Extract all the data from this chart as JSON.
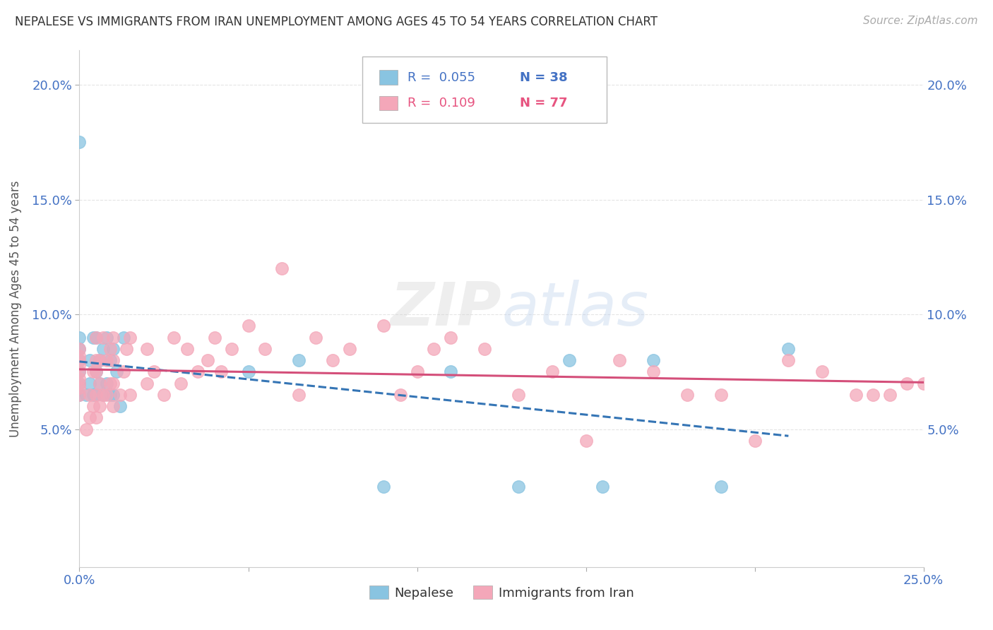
{
  "title": "NEPALESE VS IMMIGRANTS FROM IRAN UNEMPLOYMENT AMONG AGES 45 TO 54 YEARS CORRELATION CHART",
  "source": "Source: ZipAtlas.com",
  "ylabel": "Unemployment Among Ages 45 to 54 years",
  "xlim": [
    0.0,
    0.25
  ],
  "ylim": [
    -0.01,
    0.215
  ],
  "nepalese_color": "#89c4e1",
  "iran_color": "#f4a7b9",
  "nepalese_line_color": "#3575b5",
  "iran_line_color": "#d44f7a",
  "background_color": "#ffffff",
  "grid_color": "#e5e5e5",
  "legend_R1": "R =  0.055",
  "legend_N1": "N = 38",
  "legend_R2": "R =  0.109",
  "legend_N2": "N = 77",
  "nepalese_x": [
    0.0,
    0.0,
    0.0,
    0.0,
    0.0,
    0.0,
    0.0,
    0.002,
    0.003,
    0.003,
    0.004,
    0.004,
    0.005,
    0.005,
    0.005,
    0.006,
    0.006,
    0.007,
    0.007,
    0.008,
    0.008,
    0.009,
    0.009,
    0.01,
    0.01,
    0.011,
    0.012,
    0.013,
    0.05,
    0.065,
    0.09,
    0.11,
    0.13,
    0.145,
    0.155,
    0.17,
    0.19,
    0.21
  ],
  "nepalese_y": [
    0.065,
    0.07,
    0.075,
    0.08,
    0.085,
    0.09,
    0.175,
    0.065,
    0.07,
    0.08,
    0.065,
    0.09,
    0.065,
    0.075,
    0.09,
    0.07,
    0.08,
    0.065,
    0.085,
    0.07,
    0.09,
    0.065,
    0.08,
    0.065,
    0.085,
    0.075,
    0.06,
    0.09,
    0.075,
    0.08,
    0.025,
    0.075,
    0.025,
    0.08,
    0.025,
    0.08,
    0.025,
    0.085
  ],
  "iran_x": [
    0.0,
    0.0,
    0.0,
    0.0,
    0.0,
    0.0,
    0.0,
    0.0,
    0.0,
    0.002,
    0.003,
    0.003,
    0.004,
    0.004,
    0.005,
    0.005,
    0.005,
    0.005,
    0.005,
    0.006,
    0.006,
    0.006,
    0.007,
    0.007,
    0.008,
    0.008,
    0.009,
    0.009,
    0.01,
    0.01,
    0.01,
    0.01,
    0.012,
    0.013,
    0.014,
    0.015,
    0.015,
    0.02,
    0.02,
    0.022,
    0.025,
    0.028,
    0.03,
    0.032,
    0.035,
    0.038,
    0.04,
    0.042,
    0.045,
    0.05,
    0.055,
    0.06,
    0.065,
    0.07,
    0.075,
    0.08,
    0.09,
    0.095,
    0.1,
    0.105,
    0.11,
    0.12,
    0.13,
    0.14,
    0.15,
    0.16,
    0.17,
    0.18,
    0.19,
    0.2,
    0.21,
    0.22,
    0.23,
    0.235,
    0.24,
    0.245,
    0.25
  ],
  "iran_y": [
    0.065,
    0.068,
    0.07,
    0.072,
    0.075,
    0.078,
    0.08,
    0.082,
    0.085,
    0.05,
    0.055,
    0.065,
    0.06,
    0.075,
    0.055,
    0.065,
    0.075,
    0.08,
    0.09,
    0.06,
    0.07,
    0.08,
    0.065,
    0.09,
    0.065,
    0.08,
    0.07,
    0.085,
    0.06,
    0.07,
    0.08,
    0.09,
    0.065,
    0.075,
    0.085,
    0.065,
    0.09,
    0.07,
    0.085,
    0.075,
    0.065,
    0.09,
    0.07,
    0.085,
    0.075,
    0.08,
    0.09,
    0.075,
    0.085,
    0.095,
    0.085,
    0.12,
    0.065,
    0.09,
    0.08,
    0.085,
    0.095,
    0.065,
    0.075,
    0.085,
    0.09,
    0.085,
    0.065,
    0.075,
    0.045,
    0.08,
    0.075,
    0.065,
    0.065,
    0.045,
    0.08,
    0.075,
    0.065,
    0.065,
    0.065,
    0.07,
    0.07
  ]
}
